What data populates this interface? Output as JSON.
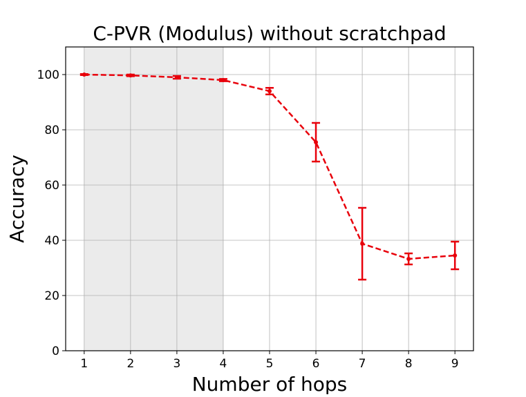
{
  "chart_data": {
    "type": "line",
    "title": "C-PVR (Modulus) without scratchpad",
    "x_label": "Number of hops",
    "y_label": "Accuracy",
    "x": [
      1,
      2,
      3,
      4,
      5,
      6,
      7,
      8,
      9
    ],
    "values": [
      100,
      99.7,
      99,
      98,
      94,
      75.5,
      38.75,
      33.25,
      34.5
    ],
    "errors": [
      0.2,
      0.3,
      0.5,
      0.4,
      1.2,
      7,
      13,
      2,
      5
    ],
    "color": "#e8000b",
    "xlim": [
      0.6,
      9.4
    ],
    "xticks": [
      1,
      2,
      3,
      4,
      5,
      6,
      7,
      8,
      9
    ],
    "ylim": [
      0,
      110
    ],
    "yticks": [
      0,
      20,
      40,
      60,
      80,
      100
    ],
    "grid": true,
    "shade": [
      1,
      4
    ],
    "shade_color": "#ebebeb"
  }
}
